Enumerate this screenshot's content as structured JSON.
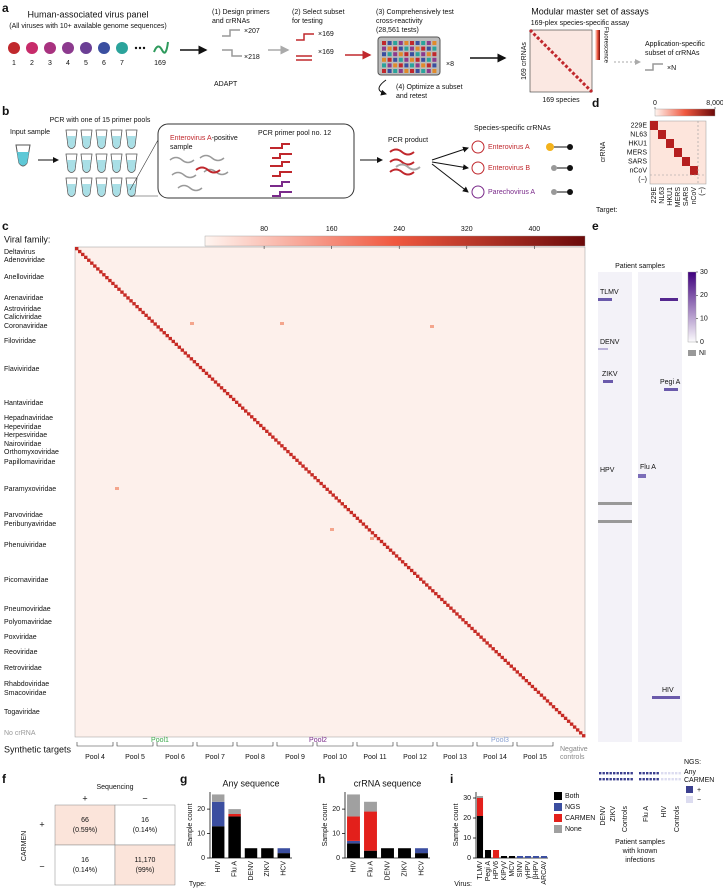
{
  "panel_labels": [
    "a",
    "b",
    "c",
    "d",
    "e",
    "f",
    "g",
    "h",
    "i"
  ],
  "a": {
    "panel_title": "Human-associated virus panel",
    "panel_subtitle": "(All viruses with 10+ available genome sequences)",
    "virus_ids": [
      "1",
      "2",
      "3",
      "4",
      "5",
      "6",
      "7",
      "169"
    ],
    "step1": [
      "(1) Design primers",
      "and crRNAs"
    ],
    "count1a": "×207",
    "count1b": "×218",
    "tool": "ADAPT",
    "step2": [
      "(2) Select subset",
      "for testing"
    ],
    "count2a": "×169",
    "count2b": "×169",
    "step3": [
      "(3) Comprehensively test",
      "cross-reactivity",
      "(28,561 tests)"
    ],
    "chip_count": "×8",
    "step4": [
      "(4) Optimize a subset",
      "and retest"
    ],
    "result_title": "Modular master set of assays",
    "result_subtitle": "169-plex species-specific assay",
    "rows_label": "169 crRNAs",
    "cols_label": "169 species",
    "fluorescence": "Fluorescence",
    "application": [
      "Application-specific",
      "subset of crRNAs"
    ],
    "app_count": "×N"
  },
  "b": {
    "input": "Input sample",
    "pcr": "PCR with one of 15 primer pools",
    "sample_virus": "Enterovirus A",
    "sample_suffix": "-positive",
    "sample_word": "sample",
    "pool": "PCR primer pool no. 12",
    "product": "PCR product",
    "crrnas": "Species-specific crRNAs",
    "targets": [
      "Enterovirus A",
      "Enterovirus B",
      "Parechovirus A"
    ]
  },
  "c": {
    "viral_family_label": "Viral family:",
    "families": [
      "Deltavirus",
      "Adenoviridae",
      "Anelloviridae",
      "Arenaviridae",
      "Astroviridae",
      "Caliciviridae",
      "Coronaviridae",
      "Filoviridae",
      "Flaviviridae",
      "Hantaviridae",
      "Hepadnaviridae",
      "Hepeviridae",
      "Herpesviridae",
      "Nairoviridae",
      "Orthomyxoviridae",
      "Papillomaviridae",
      "Paramyxoviridae",
      "Parvoviridae",
      "Peribunyaviridae",
      "Phenuiviridae",
      "Picornaviridae",
      "Pneumoviridae",
      "Polyomaviridae",
      "Poxviridae",
      "Reoviridae",
      "Retroviridae",
      "Rhabdoviridae",
      "Smacoviridae",
      "Togaviridae",
      "No crRNA"
    ],
    "colorbar_lim": [
      10,
      460
    ],
    "colorbar_ticks": [
      80,
      160,
      240,
      320,
      400
    ],
    "synthetic_targets": "Synthetic targets",
    "pools": [
      "Pool 4",
      "Pool 5",
      "Pool 6",
      "Pool 7",
      "Pool 8",
      "Pool 9",
      "Pool 10",
      "Pool 11",
      "Pool 12",
      "Pool 13",
      "Pool 14",
      "Pool 15"
    ],
    "pool_groups": [
      "Pool1",
      "Pool2",
      "Pool3"
    ],
    "negative_controls": [
      "Negative",
      "controls"
    ]
  },
  "d": {
    "colorbar_lim": [
      0,
      8000
    ],
    "colorbar_ticks": [
      0,
      {
        "value": 8000,
        "label": "8,000"
      }
    ],
    "y_label": "crRNA",
    "rows": [
      "229E",
      "NL63",
      "HKU1",
      "MERS",
      "SARS",
      "nCoV",
      "(−)"
    ],
    "x_label": "Target:",
    "cols": [
      "229E",
      "NL63",
      "HKU1",
      "MERS",
      "SARS",
      "nCoV",
      "(−)"
    ]
  },
  "e": {
    "title": "Patient samples",
    "colorbar_lim": [
      0,
      30
    ],
    "colorbar_ticks": [
      0,
      10,
      20,
      30
    ],
    "ni": "NI",
    "left_labels": [
      "TLMV",
      "DENV",
      "ZIKV",
      "HPV"
    ],
    "right_labels": [
      "Pegi A",
      "Flu A",
      "HIV"
    ],
    "ngs": "NGS:",
    "any": "Any",
    "carmen": "CARMEN",
    "plus": "+",
    "minus": "−",
    "cols": [
      "DENV",
      "ZIKV",
      "Controls",
      "Flu A",
      "HIV",
      "Controls"
    ],
    "footer": [
      "Patient samples",
      "with known",
      "infections"
    ]
  },
  "f": {
    "header": "Sequencing",
    "col_signs": [
      "+",
      "−"
    ],
    "row_label": "CARMEN",
    "row_signs": [
      "+",
      "−"
    ],
    "rows": [
      [
        {
          "count": "66",
          "pct": "(0.59%)"
        },
        {
          "count": "16",
          "pct": "(0.14%)"
        }
      ],
      [
        {
          "count": "16",
          "pct": "(0.14%)"
        },
        {
          "count": "11,170",
          "pct": "(99%)"
        }
      ]
    ]
  },
  "chart_data": [
    {
      "type": "bar",
      "stacked": true,
      "title": "Any sequence",
      "y_label": "Sample count",
      "x_label": "Type:",
      "categories": [
        "HIV",
        "Flu A",
        "DENV",
        "ZIKV",
        "HCV"
      ],
      "ylim": [
        0,
        27
      ],
      "yticks": [
        0,
        10,
        20
      ],
      "series": [
        {
          "color": "#000000",
          "values": [
            13,
            17,
            4,
            4,
            2
          ]
        },
        {
          "color": "#3b4ea0",
          "values": [
            10,
            0,
            0,
            0,
            2
          ]
        },
        {
          "color": "#e3201b",
          "values": [
            0,
            1,
            0,
            0,
            0
          ]
        },
        {
          "color": "#a0a0a0",
          "values": [
            3,
            2,
            0,
            0,
            0
          ]
        }
      ]
    },
    {
      "type": "bar",
      "stacked": true,
      "title": "crRNA sequence",
      "y_label": "Sample count",
      "categories": [
        "HIV",
        "Flu A",
        "DENV",
        "ZIKV",
        "HCV"
      ],
      "ylim": [
        0,
        27
      ],
      "yticks": [
        0,
        10,
        20
      ],
      "series": [
        {
          "color": "#000000",
          "values": [
            6,
            3,
            4,
            4,
            2
          ]
        },
        {
          "color": "#3b4ea0",
          "values": [
            1,
            0,
            0,
            0,
            2
          ]
        },
        {
          "color": "#e3201b",
          "values": [
            10,
            16,
            0,
            0,
            0
          ]
        },
        {
          "color": "#a0a0a0",
          "values": [
            9,
            4,
            0,
            0,
            0
          ]
        }
      ]
    },
    {
      "type": "bar",
      "stacked": true,
      "y_label": "Sample count",
      "x_label": "Virus:",
      "categories": [
        "TLMV",
        "Pegi A",
        "HPV6",
        "KIPyV",
        "MCV",
        "SINV",
        "γHPV",
        "βHPV",
        "ARCAV"
      ],
      "ylim": [
        0,
        33
      ],
      "yticks": [
        0,
        10,
        20,
        30
      ],
      "legend": "right",
      "series": [
        {
          "name": "Both",
          "color": "#000000",
          "values": [
            21,
            4,
            0,
            1,
            1,
            0,
            0,
            0,
            0
          ]
        },
        {
          "name": "NGS",
          "color": "#3b4ea0",
          "values": [
            0,
            0,
            0,
            0,
            0,
            1,
            1,
            1,
            1
          ]
        },
        {
          "name": "CARMEN",
          "color": "#e3201b",
          "values": [
            9,
            0,
            4,
            0,
            0,
            0,
            0,
            0,
            0
          ]
        },
        {
          "name": "None",
          "color": "#a0a0a0",
          "values": [
            1,
            0,
            0,
            0,
            0,
            0,
            0,
            0,
            0
          ]
        }
      ]
    }
  ]
}
